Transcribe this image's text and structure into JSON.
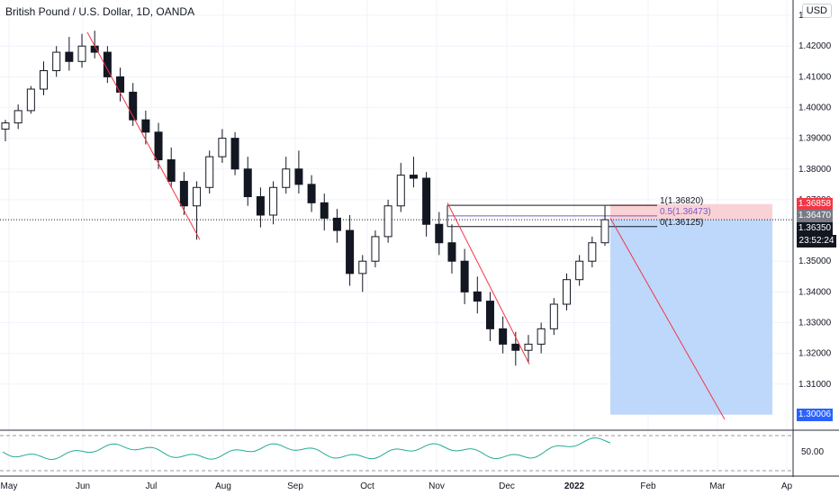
{
  "header": {
    "title": "British Pound / U.S. Dollar, 1D, OANDA",
    "currency": "USD"
  },
  "price_axis": {
    "ticks": [
      "1.43000",
      "1.42000",
      "1.41000",
      "1.40000",
      "1.39000",
      "1.38000",
      "1.37000",
      "1.35000",
      "1.34000",
      "1.33000",
      "1.32000",
      "1.31000"
    ]
  },
  "price_tags": [
    {
      "value": "1.36858",
      "color": "#f23645"
    },
    {
      "value": "1.36470",
      "color": "#787b86"
    },
    {
      "value": "1.36350",
      "color": "#131722"
    },
    {
      "value": "1.30006",
      "color": "#2962ff"
    }
  ],
  "countdown": "23:52:24",
  "fib_levels": [
    {
      "label": "1(1.36820)",
      "color": "#131722"
    },
    {
      "label": "0.5(1.36473)",
      "color": "#7e57c2"
    },
    {
      "label": "0(1.36125)",
      "color": "#131722"
    }
  ],
  "rsi": {
    "tick": "50.00",
    "color": "#22ab94"
  },
  "time_axis": {
    "labels": [
      "May",
      "Jun",
      "Jul",
      "Aug",
      "Sep",
      "Oct",
      "Nov",
      "Dec",
      "2022",
      "Feb",
      "Mar",
      "Ap"
    ]
  },
  "chart_data": {
    "type": "candlestick",
    "symbol": "British Pound / U.S. Dollar",
    "interval": "1D",
    "exchange": "OANDA",
    "ylim": [
      1.295,
      1.435
    ],
    "x": [
      "May",
      "Jun",
      "Jul",
      "Aug",
      "Sep",
      "Oct",
      "Nov",
      "Dec",
      "2022",
      "Feb",
      "Mar",
      "Ap"
    ],
    "series": [
      {
        "values": [
          [
            1.393,
            1.396,
            1.389,
            1.395
          ],
          [
            1.395,
            1.401,
            1.393,
            1.399
          ],
          [
            1.399,
            1.407,
            1.398,
            1.406
          ],
          [
            1.406,
            1.415,
            1.404,
            1.412
          ],
          [
            1.412,
            1.42,
            1.41,
            1.418
          ],
          [
            1.418,
            1.423,
            1.412,
            1.415
          ],
          [
            1.415,
            1.424,
            1.413,
            1.42
          ],
          [
            1.42,
            1.425,
            1.416,
            1.418
          ],
          [
            1.418,
            1.42,
            1.408,
            1.41
          ],
          [
            1.41,
            1.413,
            1.402,
            1.405
          ],
          [
            1.405,
            1.408,
            1.394,
            1.396
          ],
          [
            1.396,
            1.399,
            1.388,
            1.392
          ],
          [
            1.392,
            1.395,
            1.38,
            1.383
          ],
          [
            1.383,
            1.387,
            1.374,
            1.376
          ],
          [
            1.376,
            1.379,
            1.365,
            1.368
          ],
          [
            1.368,
            1.376,
            1.357,
            1.374
          ],
          [
            1.374,
            1.386,
            1.372,
            1.384
          ],
          [
            1.384,
            1.393,
            1.382,
            1.39
          ],
          [
            1.39,
            1.392,
            1.378,
            1.38
          ],
          [
            1.38,
            1.384,
            1.368,
            1.371
          ],
          [
            1.371,
            1.374,
            1.361,
            1.365
          ],
          [
            1.365,
            1.376,
            1.362,
            1.374
          ],
          [
            1.374,
            1.384,
            1.372,
            1.38
          ],
          [
            1.38,
            1.386,
            1.372,
            1.375
          ],
          [
            1.375,
            1.378,
            1.366,
            1.369
          ],
          [
            1.369,
            1.372,
            1.36,
            1.364
          ],
          [
            1.364,
            1.367,
            1.356,
            1.36
          ],
          [
            1.36,
            1.365,
            1.342,
            1.346
          ],
          [
            1.346,
            1.352,
            1.34,
            1.35
          ],
          [
            1.35,
            1.36,
            1.348,
            1.358
          ],
          [
            1.358,
            1.37,
            1.356,
            1.368
          ],
          [
            1.368,
            1.382,
            1.366,
            1.378
          ],
          [
            1.378,
            1.384,
            1.374,
            1.377
          ],
          [
            1.377,
            1.379,
            1.358,
            1.362
          ],
          [
            1.362,
            1.366,
            1.352,
            1.356
          ],
          [
            1.356,
            1.362,
            1.346,
            1.35
          ],
          [
            1.35,
            1.354,
            1.336,
            1.34
          ],
          [
            1.34,
            1.345,
            1.333,
            1.337
          ],
          [
            1.337,
            1.34,
            1.324,
            1.328
          ],
          [
            1.328,
            1.332,
            1.32,
            1.323
          ],
          [
            1.323,
            1.327,
            1.316,
            1.321
          ],
          [
            1.321,
            1.326,
            1.317,
            1.323
          ],
          [
            1.323,
            1.33,
            1.32,
            1.328
          ],
          [
            1.328,
            1.338,
            1.326,
            1.336
          ],
          [
            1.336,
            1.346,
            1.334,
            1.344
          ],
          [
            1.344,
            1.352,
            1.342,
            1.35
          ],
          [
            1.35,
            1.358,
            1.348,
            1.356
          ],
          [
            1.356,
            1.368,
            1.355,
            1.3635
          ]
        ]
      }
    ]
  }
}
